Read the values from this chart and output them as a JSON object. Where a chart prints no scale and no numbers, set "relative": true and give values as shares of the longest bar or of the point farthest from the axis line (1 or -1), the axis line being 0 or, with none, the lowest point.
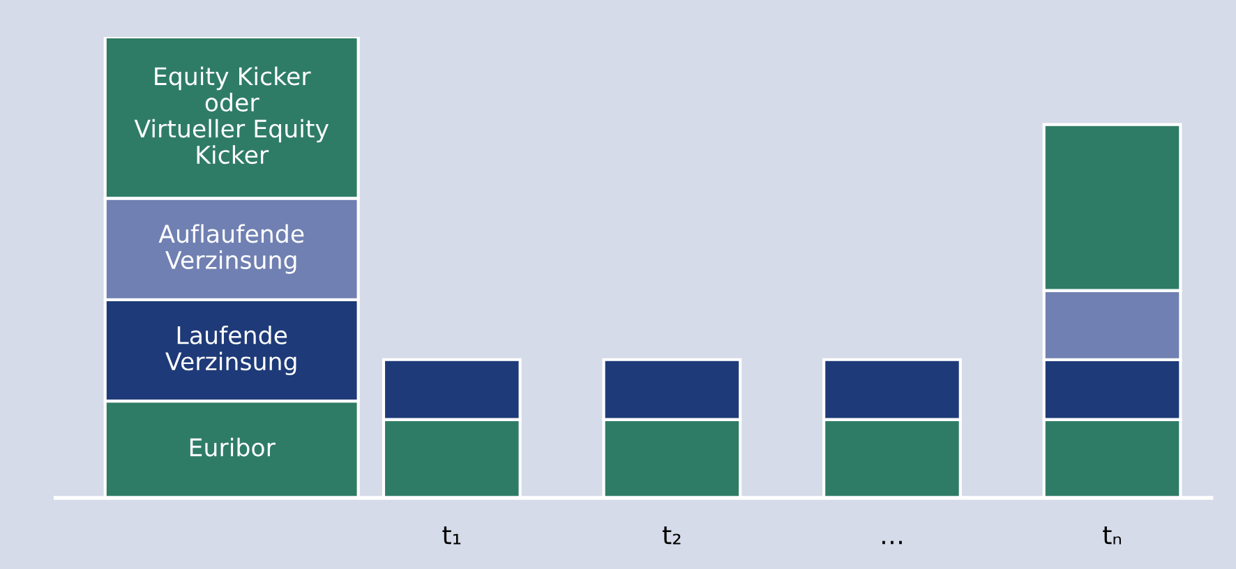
{
  "chart_data": {
    "type": "bar",
    "stacked": true,
    "relative": true,
    "legend": false,
    "grid": false,
    "tick_labels": "x",
    "categories": [
      null,
      "t₁",
      "t₂",
      "…",
      "tₙ"
    ],
    "series": [
      {
        "name": "Euribor",
        "color": "#2f7c66",
        "values": [
          0.21,
          0.17,
          0.17,
          0.17,
          0.17
        ]
      },
      {
        "name": "Laufende\nVerzinsung",
        "color": "#1e3a78",
        "values": [
          0.22,
          0.13,
          0.13,
          0.13,
          0.13
        ]
      },
      {
        "name": "Auflaufende\nVerzinsung",
        "color": "#7080b2",
        "values": [
          0.22,
          null,
          null,
          null,
          0.15
        ]
      },
      {
        "name": "Equity Kicker\noder\nVirtueller Equity\nKicker",
        "color": "#2f7c66",
        "values": [
          0.35,
          null,
          null,
          null,
          0.36
        ]
      }
    ]
  }
}
